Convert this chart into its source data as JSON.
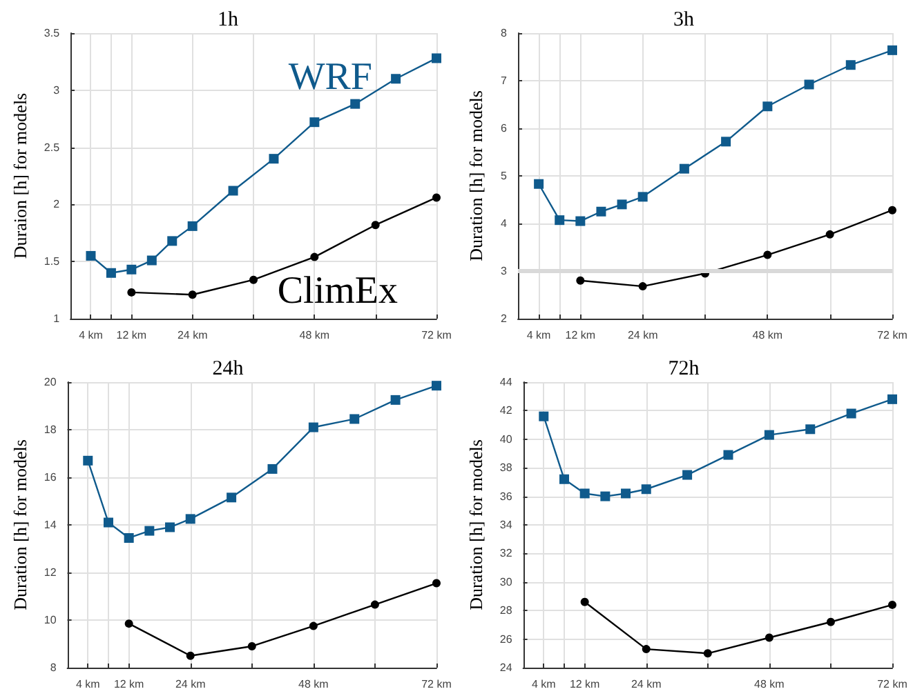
{
  "chart_data": [
    {
      "type": "line",
      "title": "1h",
      "ylabel": "Duraion [h] for models",
      "xlim": [
        0,
        72
      ],
      "xticks": [
        {
          "value": 4,
          "label": "4 km"
        },
        {
          "value": 8,
          "label": null
        },
        {
          "value": 12,
          "label": "12 km"
        },
        {
          "value": 24,
          "label": "24 km"
        },
        {
          "value": 36,
          "label": null
        },
        {
          "value": 48,
          "label": "48 km"
        },
        {
          "value": 60,
          "label": null
        },
        {
          "value": 72,
          "label": "72 km"
        }
      ],
      "ylim": [
        1,
        3.5
      ],
      "yticks": [
        1,
        1.5,
        2,
        2.5,
        3,
        3.5
      ],
      "grid": true,
      "legend": false,
      "series": [
        {
          "name": "WRF",
          "color": "#0f5a8c",
          "marker": "square",
          "x": [
            4,
            8,
            12,
            16,
            20,
            24,
            32,
            40,
            48,
            56,
            64,
            72
          ],
          "values": [
            1.55,
            1.4,
            1.43,
            1.51,
            1.68,
            1.81,
            2.12,
            2.4,
            2.72,
            2.88,
            3.1,
            3.28
          ]
        },
        {
          "name": "ClimEx",
          "color": "#000000",
          "marker": "circle",
          "x": [
            12,
            24,
            36,
            48,
            60,
            72
          ],
          "values": [
            1.23,
            1.21,
            1.34,
            1.54,
            1.82,
            2.06
          ]
        }
      ]
    },
    {
      "type": "line",
      "title": "3h",
      "ylabel": "Duration [h] for models",
      "xlim": [
        0,
        72
      ],
      "xticks": [
        {
          "value": 4,
          "label": "4 km"
        },
        {
          "value": 8,
          "label": null
        },
        {
          "value": 12,
          "label": "12 km"
        },
        {
          "value": 24,
          "label": "24 km"
        },
        {
          "value": 36,
          "label": null
        },
        {
          "value": 48,
          "label": "48 km"
        },
        {
          "value": 60,
          "label": null
        },
        {
          "value": 72,
          "label": "72 km"
        }
      ],
      "ylim": [
        2,
        8
      ],
      "yticks": [
        2,
        3,
        4,
        5,
        6,
        7,
        8
      ],
      "grid": true,
      "legend": false,
      "ref_lines": [
        {
          "axis": "y",
          "value": 3,
          "color": "#d9d9d9"
        }
      ],
      "series": [
        {
          "color": "#0f5a8c",
          "marker": "square",
          "x": [
            4,
            8,
            12,
            16,
            20,
            24,
            32,
            40,
            48,
            56,
            64,
            72
          ],
          "values": [
            4.83,
            4.07,
            4.05,
            4.25,
            4.4,
            4.56,
            5.15,
            5.72,
            6.46,
            6.92,
            7.33,
            7.64
          ]
        },
        {
          "color": "#000000",
          "marker": "circle",
          "x": [
            12,
            24,
            36,
            48,
            60,
            72
          ],
          "values": [
            2.8,
            2.68,
            2.95,
            3.34,
            3.77,
            4.28
          ]
        }
      ]
    },
    {
      "type": "line",
      "title": "24h",
      "ylabel": "Duration [h] for models",
      "xlim": [
        0,
        72
      ],
      "xticks": [
        {
          "value": 4,
          "label": "4 km"
        },
        {
          "value": 8,
          "label": null
        },
        {
          "value": 12,
          "label": "12 km"
        },
        {
          "value": 24,
          "label": "24 km"
        },
        {
          "value": 36,
          "label": null
        },
        {
          "value": 48,
          "label": "48 km"
        },
        {
          "value": 60,
          "label": null
        },
        {
          "value": 72,
          "label": "72 km"
        }
      ],
      "ylim": [
        8,
        20
      ],
      "yticks": [
        8,
        10,
        12,
        14,
        16,
        18,
        20
      ],
      "grid": true,
      "legend": false,
      "series": [
        {
          "color": "#0f5a8c",
          "marker": "square",
          "x": [
            4,
            8,
            12,
            16,
            20,
            24,
            32,
            40,
            48,
            56,
            64,
            72
          ],
          "values": [
            16.7,
            14.1,
            13.45,
            13.75,
            13.9,
            14.25,
            15.15,
            16.35,
            18.1,
            18.45,
            19.25,
            19.85
          ]
        },
        {
          "color": "#000000",
          "marker": "circle",
          "x": [
            12,
            24,
            36,
            48,
            60,
            72
          ],
          "values": [
            9.85,
            8.5,
            8.9,
            9.75,
            10.65,
            11.55
          ]
        }
      ]
    },
    {
      "type": "line",
      "title": "72h",
      "ylabel": "Duration [h] for models",
      "xlim": [
        0,
        72
      ],
      "xticks": [
        {
          "value": 4,
          "label": "4 km"
        },
        {
          "value": 8,
          "label": null
        },
        {
          "value": 12,
          "label": "12 km"
        },
        {
          "value": 24,
          "label": "24 km"
        },
        {
          "value": 36,
          "label": null
        },
        {
          "value": 48,
          "label": "48 km"
        },
        {
          "value": 60,
          "label": null
        },
        {
          "value": 72,
          "label": "72 km"
        }
      ],
      "ylim": [
        24,
        44
      ],
      "yticks": [
        24,
        26,
        28,
        30,
        32,
        34,
        36,
        38,
        40,
        42,
        44
      ],
      "grid": true,
      "legend": false,
      "series": [
        {
          "color": "#0f5a8c",
          "marker": "square",
          "x": [
            4,
            8,
            12,
            16,
            20,
            24,
            32,
            40,
            48,
            56,
            64,
            72
          ],
          "values": [
            41.6,
            37.2,
            36.2,
            36.0,
            36.2,
            36.5,
            37.5,
            38.9,
            40.3,
            40.7,
            41.8,
            42.8
          ]
        },
        {
          "color": "#000000",
          "marker": "circle",
          "x": [
            12,
            24,
            36,
            48,
            60,
            72
          ],
          "values": [
            28.6,
            25.3,
            25.0,
            26.1,
            27.2,
            28.4
          ]
        }
      ]
    }
  ]
}
